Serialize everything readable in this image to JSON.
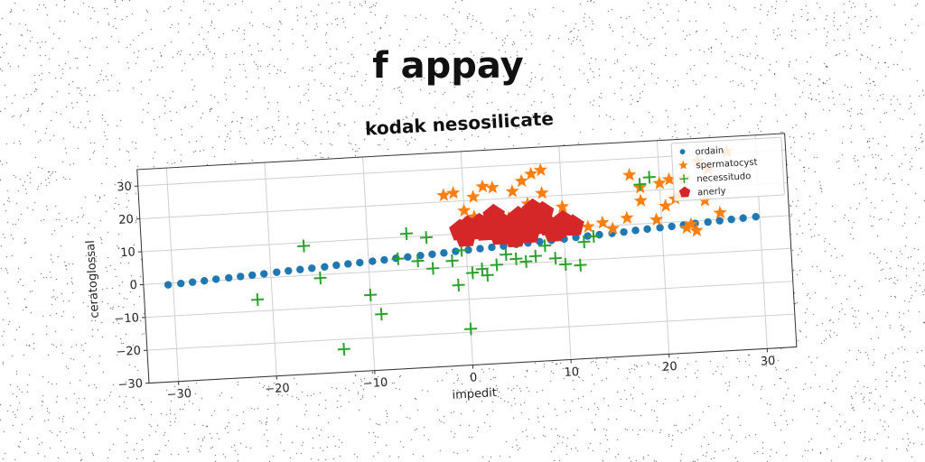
{
  "chart_data": {
    "type": "scatter",
    "title": "f appay",
    "subtitle": "kodak nesosilicate",
    "xlabel": "impedit",
    "ylabel": "ceratoglossal",
    "xlim": [
      -33,
      33
    ],
    "ylim": [
      -30,
      35
    ],
    "xticks": [
      -30,
      -20,
      -10,
      0,
      10,
      20,
      30
    ],
    "yticks": [
      -30,
      -20,
      -10,
      0,
      10,
      20,
      30
    ],
    "grid": true,
    "legend_position": "top-right",
    "series": [
      {
        "name": "ordain",
        "marker": "circle",
        "color": "#1f77b4",
        "points": [
          [
            -30.5,
            -0.5
          ],
          [
            -29.2,
            -0.3
          ],
          [
            -28,
            -0.1
          ],
          [
            -26.8,
            0.1
          ],
          [
            -25.6,
            0.4
          ],
          [
            -24.3,
            0.6
          ],
          [
            -23.1,
            0.8
          ],
          [
            -21.9,
            1.0
          ],
          [
            -20.7,
            1.2
          ],
          [
            -19.4,
            1.5
          ],
          [
            -18.2,
            1.7
          ],
          [
            -17,
            1.9
          ],
          [
            -15.8,
            2.1
          ],
          [
            -14.5,
            2.3
          ],
          [
            -13.3,
            2.6
          ],
          [
            -12.1,
            2.8
          ],
          [
            -10.9,
            3.0
          ],
          [
            -9.6,
            3.2
          ],
          [
            -8.4,
            3.4
          ],
          [
            -7.2,
            3.7
          ],
          [
            -6,
            3.9
          ],
          [
            -4.7,
            4.1
          ],
          [
            -3.5,
            4.3
          ],
          [
            -2.3,
            4.5
          ],
          [
            -1.1,
            4.8
          ],
          [
            0.2,
            5.0
          ],
          [
            1.4,
            5.2
          ],
          [
            2.6,
            5.4
          ],
          [
            3.8,
            5.6
          ],
          [
            5.1,
            5.9
          ],
          [
            6.3,
            6.1
          ],
          [
            7.5,
            6.3
          ],
          [
            8.7,
            6.5
          ],
          [
            10,
            6.7
          ],
          [
            11.2,
            7.0
          ],
          [
            12.4,
            7.2
          ],
          [
            13.6,
            7.4
          ],
          [
            14.9,
            7.6
          ],
          [
            16.1,
            7.8
          ],
          [
            17.3,
            8.1
          ],
          [
            18.5,
            8.3
          ],
          [
            19.8,
            8.5
          ],
          [
            21,
            8.7
          ],
          [
            22.2,
            8.9
          ],
          [
            23.4,
            9.2
          ],
          [
            24.7,
            9.4
          ],
          [
            25.9,
            9.6
          ],
          [
            27.1,
            9.8
          ],
          [
            28.3,
            10.0
          ],
          [
            29.6,
            10.2
          ]
        ]
      },
      {
        "name": "spermatocyst",
        "marker": "star",
        "color": "#ff7f0e",
        "points": [
          [
            -2,
            22
          ],
          [
            -1,
            22.5
          ],
          [
            0,
            17
          ],
          [
            1,
            21
          ],
          [
            2,
            24
          ],
          [
            3,
            23.5
          ],
          [
            5,
            22
          ],
          [
            6,
            25
          ],
          [
            7,
            27
          ],
          [
            8,
            28
          ],
          [
            8,
            21
          ],
          [
            11,
            12
          ],
          [
            11.5,
            11
          ],
          [
            12.5,
            10
          ],
          [
            14,
            11
          ],
          [
            15,
            9
          ],
          [
            16.5,
            12
          ],
          [
            18,
            17
          ],
          [
            17,
            25
          ],
          [
            18,
            21
          ],
          [
            19.5,
            11
          ],
          [
            20,
            22
          ],
          [
            21,
            23
          ],
          [
            20.5,
            15
          ],
          [
            21.5,
            17
          ],
          [
            22,
            18
          ],
          [
            22.5,
            8
          ],
          [
            23,
            9
          ],
          [
            23.5,
            7
          ],
          [
            24.5,
            16
          ],
          [
            26,
            12
          ],
          [
            22.5,
            23
          ],
          [
            24,
            28
          ],
          [
            25,
            25.5
          ],
          [
            27,
            30.5
          ],
          [
            4.5,
            14
          ],
          [
            6.5,
            18
          ],
          [
            10,
            16.5
          ],
          [
            1,
            15
          ],
          [
            3.5,
            14
          ]
        ]
      },
      {
        "name": "necessitudo",
        "marker": "plus",
        "color": "#2ca02c",
        "points": [
          [
            -21.5,
            -6.5
          ],
          [
            -16.5,
            9
          ],
          [
            -15,
            -1
          ],
          [
            -13,
            -23
          ],
          [
            -10,
            -7
          ],
          [
            -9,
            -13
          ],
          [
            -7,
            3.5
          ],
          [
            -6,
            11
          ],
          [
            -5,
            2.5
          ],
          [
            -4,
            9.5
          ],
          [
            -3.5,
            0
          ],
          [
            -1.5,
            2
          ],
          [
            -1,
            -5.5
          ],
          [
            -0.5,
            5
          ],
          [
            0,
            -19
          ],
          [
            0.5,
            -2
          ],
          [
            1.5,
            -1
          ],
          [
            2,
            -3
          ],
          [
            3,
            0
          ],
          [
            4,
            3
          ],
          [
            5,
            1.5
          ],
          [
            6,
            0.5
          ],
          [
            7,
            2
          ],
          [
            8,
            5
          ],
          [
            9,
            1
          ],
          [
            10,
            -1
          ],
          [
            11.5,
            -1.5
          ],
          [
            12,
            5.5
          ],
          [
            13,
            7
          ],
          [
            18,
            22
          ],
          [
            19,
            24
          ]
        ]
      },
      {
        "name": "anerly",
        "marker": "pentagon",
        "color": "#d62728",
        "points": [
          [
            -0.5,
            11
          ],
          [
            0.3,
            12
          ],
          [
            0,
            9
          ],
          [
            1,
            11
          ],
          [
            1.5,
            12.5
          ],
          [
            2,
            10.5
          ],
          [
            3,
            11.5
          ],
          [
            3.5,
            9
          ],
          [
            2.5,
            13
          ],
          [
            3,
            15
          ],
          [
            4,
            12
          ],
          [
            4.5,
            10
          ],
          [
            5,
            8
          ],
          [
            6,
            10
          ],
          [
            7,
            11.5
          ],
          [
            7.5,
            13.5
          ],
          [
            8,
            15
          ],
          [
            7,
            16
          ],
          [
            8.5,
            11
          ],
          [
            9,
            9
          ],
          [
            9.5,
            10
          ],
          [
            10,
            12
          ],
          [
            11,
            10.5
          ],
          [
            6.5,
            9
          ],
          [
            5.5,
            14
          ]
        ]
      }
    ]
  }
}
